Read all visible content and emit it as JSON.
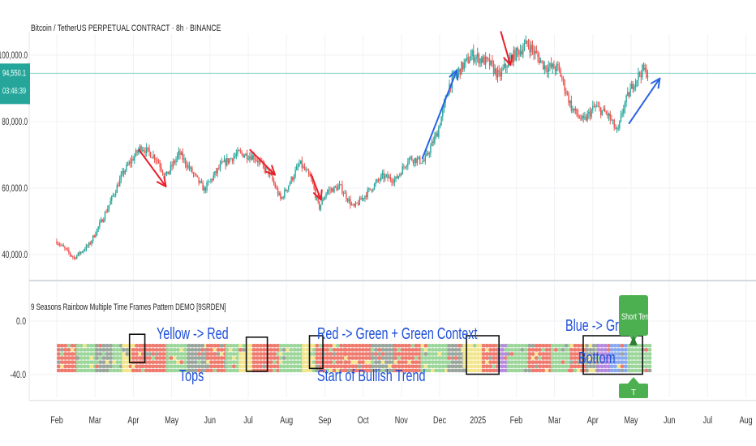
{
  "chart_data": [
    {
      "type": "candlestick",
      "title": "Bitcoin / TetherUS PERPETUAL CONTRACT · 8h · BINANCE",
      "x_labels": [
        "Feb",
        "Mar",
        "Apr",
        "May",
        "Jun",
        "Jul",
        "Aug",
        "Sep",
        "Oct",
        "Nov",
        "Dec",
        "2025",
        "Feb",
        "Mar",
        "Apr",
        "May",
        "Jun",
        "Jul",
        "Aug"
      ],
      "y_ticks": [
        "100,000.0",
        "80,000.0",
        "60,000.0",
        "40,000.0"
      ],
      "y_tick_values": [
        100000,
        80000,
        60000,
        40000
      ],
      "ylim": [
        35500,
        104500
      ],
      "last_price": "94,550.1",
      "countdown": "03:46:39",
      "grid": true,
      "price_path": [
        {
          "m": 0.0,
          "v": 44000
        },
        {
          "m": 0.45,
          "v": 39000
        },
        {
          "m": 0.85,
          "v": 43000
        },
        {
          "m": 1.25,
          "v": 52000
        },
        {
          "m": 1.75,
          "v": 65000
        },
        {
          "m": 2.2,
          "v": 72500
        },
        {
          "m": 2.6,
          "v": 69000
        },
        {
          "m": 2.85,
          "v": 63500
        },
        {
          "m": 3.2,
          "v": 70500
        },
        {
          "m": 3.55,
          "v": 64500
        },
        {
          "m": 3.85,
          "v": 59500
        },
        {
          "m": 4.3,
          "v": 67000
        },
        {
          "m": 4.75,
          "v": 70500
        },
        {
          "m": 5.15,
          "v": 69500
        },
        {
          "m": 5.55,
          "v": 64500
        },
        {
          "m": 5.85,
          "v": 56500
        },
        {
          "m": 6.35,
          "v": 67500
        },
        {
          "m": 6.65,
          "v": 62500
        },
        {
          "m": 6.85,
          "v": 54000
        },
        {
          "m": 7.05,
          "v": 59000
        },
        {
          "m": 7.4,
          "v": 60500
        },
        {
          "m": 7.75,
          "v": 54000
        },
        {
          "m": 8.1,
          "v": 58500
        },
        {
          "m": 8.5,
          "v": 63500
        },
        {
          "m": 8.85,
          "v": 62500
        },
        {
          "m": 9.2,
          "v": 69000
        },
        {
          "m": 9.6,
          "v": 68000
        },
        {
          "m": 9.95,
          "v": 77000
        },
        {
          "m": 10.25,
          "v": 91000
        },
        {
          "m": 10.55,
          "v": 96000
        },
        {
          "m": 10.85,
          "v": 100000
        },
        {
          "m": 11.3,
          "v": 97500
        },
        {
          "m": 11.55,
          "v": 93500
        },
        {
          "m": 11.85,
          "v": 99000
        },
        {
          "m": 12.3,
          "v": 103500
        },
        {
          "m": 12.75,
          "v": 96500
        },
        {
          "m": 13.1,
          "v": 96000
        },
        {
          "m": 13.45,
          "v": 84000
        },
        {
          "m": 13.75,
          "v": 80000
        },
        {
          "m": 14.05,
          "v": 84500
        },
        {
          "m": 14.4,
          "v": 82000
        },
        {
          "m": 14.65,
          "v": 76500
        },
        {
          "m": 14.8,
          "v": 84500
        },
        {
          "m": 15.1,
          "v": 92500
        },
        {
          "m": 15.3,
          "v": 95500
        },
        {
          "m": 15.45,
          "v": 94550
        }
      ],
      "annotations": {
        "red_down_arrows": [
          {
            "m0": 2.15,
            "v0": 71500,
            "m1": 2.85,
            "v1": 60500
          },
          {
            "m0": 5.05,
            "v0": 71500,
            "m1": 5.7,
            "v1": 64000
          },
          {
            "m0": 6.65,
            "v0": 64000,
            "m1": 6.9,
            "v1": 56500
          },
          {
            "m0": 11.6,
            "v0": 107000,
            "m1": 11.85,
            "v1": 97000
          }
        ],
        "blue_up_arrows": [
          {
            "m0": 9.55,
            "v0": 69000,
            "m1": 10.45,
            "v1": 95500
          },
          {
            "m0": 14.95,
            "v0": 79500,
            "m1": 15.75,
            "v1": 93000
          }
        ]
      }
    },
    {
      "type": "heatmap",
      "title": "9 Seasons Rainbow Multiple Time Frames Pattern DEMO [9SRDEN]",
      "y_ticks": [
        "0.0",
        "-40.0"
      ],
      "palette": {
        "green": "#9cd69a",
        "gray": "#9aa59c",
        "red": "#ef7a6e",
        "yellow": "#f2e58c",
        "blue": "#8aa8ee",
        "purple": "#b68ae0"
      },
      "row_count": 7,
      "segments": [
        {
          "m0": 0.0,
          "m1": 0.5,
          "c": "red"
        },
        {
          "m0": 0.5,
          "m1": 1.0,
          "c": "green"
        },
        {
          "m0": 1.0,
          "m1": 1.45,
          "c": "gray"
        },
        {
          "m0": 1.45,
          "m1": 1.7,
          "c": "green"
        },
        {
          "m0": 1.7,
          "m1": 1.95,
          "c": "yellow"
        },
        {
          "m0": 1.95,
          "m1": 2.2,
          "c": "red"
        },
        {
          "m0": 2.2,
          "m1": 2.85,
          "c": "red"
        },
        {
          "m0": 2.85,
          "m1": 3.4,
          "c": "green"
        },
        {
          "m0": 3.4,
          "m1": 3.9,
          "c": "gray"
        },
        {
          "m0": 3.9,
          "m1": 4.4,
          "c": "red"
        },
        {
          "m0": 4.4,
          "m1": 4.75,
          "c": "green"
        },
        {
          "m0": 4.75,
          "m1": 5.1,
          "c": "yellow"
        },
        {
          "m0": 5.1,
          "m1": 5.8,
          "c": "red"
        },
        {
          "m0": 5.8,
          "m1": 6.4,
          "c": "green"
        },
        {
          "m0": 6.4,
          "m1": 6.75,
          "c": "yellow"
        },
        {
          "m0": 6.75,
          "m1": 7.5,
          "c": "red"
        },
        {
          "m0": 7.5,
          "m1": 8.2,
          "c": "red"
        },
        {
          "m0": 8.2,
          "m1": 8.8,
          "c": "gray"
        },
        {
          "m0": 8.8,
          "m1": 9.5,
          "c": "red"
        },
        {
          "m0": 9.5,
          "m1": 10.2,
          "c": "green"
        },
        {
          "m0": 10.2,
          "m1": 10.6,
          "c": "gray"
        },
        {
          "m0": 10.6,
          "m1": 11.1,
          "c": "yellow"
        },
        {
          "m0": 11.1,
          "m1": 11.5,
          "c": "red"
        },
        {
          "m0": 11.5,
          "m1": 11.75,
          "c": "purple"
        },
        {
          "m0": 11.75,
          "m1": 12.3,
          "c": "green"
        },
        {
          "m0": 12.3,
          "m1": 12.9,
          "c": "red"
        },
        {
          "m0": 12.9,
          "m1": 13.4,
          "c": "green"
        },
        {
          "m0": 13.4,
          "m1": 13.8,
          "c": "red"
        },
        {
          "m0": 13.8,
          "m1": 14.1,
          "c": "gray"
        },
        {
          "m0": 14.1,
          "m1": 14.45,
          "c": "purple"
        },
        {
          "m0": 14.45,
          "m1": 14.9,
          "c": "blue"
        },
        {
          "m0": 14.9,
          "m1": 15.45,
          "c": "green"
        }
      ],
      "boxes": [
        {
          "m0": 1.9,
          "m1": 2.3,
          "r0": -0.05,
          "r1": 0.65
        },
        {
          "m0": 4.95,
          "m1": 5.5,
          "r0": 0.05,
          "r1": 0.95
        },
        {
          "m0": 6.6,
          "m1": 6.95,
          "r0": 0.0,
          "r1": 0.85
        },
        {
          "m0": 10.7,
          "m1": 11.55,
          "r0": 0.0,
          "r1": 1.05
        },
        {
          "m0": 13.75,
          "m1": 15.3,
          "r0": 0.0,
          "r1": 1.05
        }
      ],
      "labels": {
        "yellow_red": "Yellow -> Red",
        "tops": "Tops",
        "red_green": "Red -> Green + Green Context",
        "start_bullish": "Start of Bullish Trend",
        "blue_green": "Blue -> Green",
        "bottom": "Bottom",
        "short_term": "Short Term",
        "small_badge": "T"
      }
    }
  ]
}
